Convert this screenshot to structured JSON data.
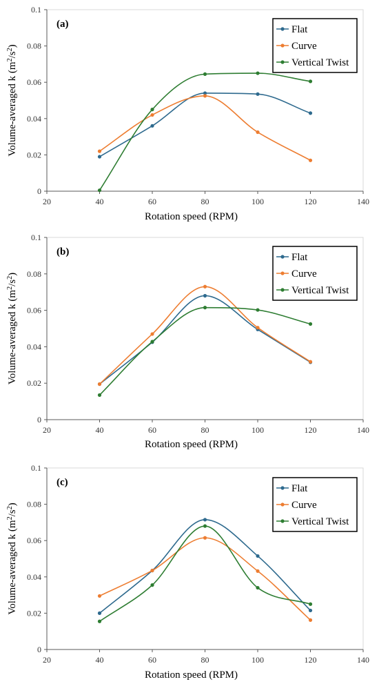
{
  "chart_data": [
    {
      "type": "line",
      "panel_label": "(a)",
      "xlabel": "Rotation speed (RPM)",
      "ylabel": "Volume-averaged k (m²/s²)",
      "ylabel_parts": {
        "prefix": "Volume-averaged k (m",
        "sup1": "2",
        "mid": "/s",
        "sup2": "2",
        "suffix": ")"
      },
      "xlim": [
        20,
        140
      ],
      "ylim": [
        0,
        0.1
      ],
      "xticks": [
        20,
        40,
        60,
        80,
        100,
        120,
        140
      ],
      "yticks": [
        0,
        0.02,
        0.04,
        0.06,
        0.08,
        0.1
      ],
      "ytick_labels": [
        "0",
        "0.02",
        "0.04",
        "0.06",
        "0.08",
        "0.1"
      ],
      "legend": "top-right",
      "grid": false,
      "x": [
        40,
        60,
        80,
        100,
        120
      ],
      "series": [
        {
          "name": "Flat",
          "color": "#2E6A8E",
          "values": [
            0.019,
            0.036,
            0.054,
            0.0535,
            0.043
          ]
        },
        {
          "name": "Curve",
          "color": "#ED7D31",
          "values": [
            0.022,
            0.042,
            0.0525,
            0.0325,
            0.017
          ]
        },
        {
          "name": "Vertical Twist",
          "color": "#2E7D32",
          "values": [
            0.0005,
            0.045,
            0.0645,
            0.065,
            0.0605
          ]
        }
      ]
    },
    {
      "type": "line",
      "panel_label": "(b)",
      "xlabel": "Rotation speed (RPM)",
      "ylabel": "Volume-averaged k (m²/s²)",
      "ylabel_parts": {
        "prefix": "Volume-averaged k (m",
        "sup1": "2",
        "mid": "/s",
        "sup2": "2",
        "suffix": ")"
      },
      "xlim": [
        20,
        140
      ],
      "ylim": [
        0,
        0.1
      ],
      "xticks": [
        20,
        40,
        60,
        80,
        100,
        120,
        140
      ],
      "yticks": [
        0,
        0.02,
        0.04,
        0.06,
        0.08,
        0.1
      ],
      "ytick_labels": [
        "0",
        "0.02",
        "0.04",
        "0.06",
        "0.08",
        "0.1"
      ],
      "legend": "top-right",
      "grid": false,
      "x": [
        40,
        60,
        80,
        100,
        120
      ],
      "series": [
        {
          "name": "Flat",
          "color": "#2E6A8E",
          "values": [
            0.0195,
            0.0425,
            0.068,
            0.0495,
            0.0315
          ]
        },
        {
          "name": "Curve",
          "color": "#ED7D31",
          "values": [
            0.0195,
            0.047,
            0.073,
            0.0505,
            0.0318
          ]
        },
        {
          "name": "Vertical Twist",
          "color": "#2E7D32",
          "values": [
            0.0135,
            0.0428,
            0.0615,
            0.0602,
            0.0525
          ]
        }
      ]
    },
    {
      "type": "line",
      "panel_label": "(c)",
      "xlabel": "Rotation speed (RPM)",
      "ylabel": "Volume-averaged k (m²/s²)",
      "ylabel_parts": {
        "prefix": "Volume-averaged k (m",
        "sup1": "2",
        "mid": "/s",
        "sup2": "2",
        "suffix": ")"
      },
      "xlim": [
        20,
        140
      ],
      "ylim": [
        0,
        0.1
      ],
      "xticks": [
        20,
        40,
        60,
        80,
        100,
        120,
        140
      ],
      "yticks": [
        0,
        0.02,
        0.04,
        0.06,
        0.08,
        0.1
      ],
      "ytick_labels": [
        "0",
        "0.02",
        "0.04",
        "0.06",
        "0.08",
        "0.1"
      ],
      "legend": "top-right",
      "grid": false,
      "x": [
        40,
        60,
        80,
        100,
        120
      ],
      "series": [
        {
          "name": "Flat",
          "color": "#2E6A8E",
          "values": [
            0.02,
            0.0435,
            0.0715,
            0.0515,
            0.0215
          ]
        },
        {
          "name": "Curve",
          "color": "#ED7D31",
          "values": [
            0.0295,
            0.0435,
            0.0615,
            0.0432,
            0.0162
          ]
        },
        {
          "name": "Vertical Twist",
          "color": "#2E7D32",
          "values": [
            0.0155,
            0.0355,
            0.068,
            0.034,
            0.025
          ]
        }
      ]
    }
  ]
}
